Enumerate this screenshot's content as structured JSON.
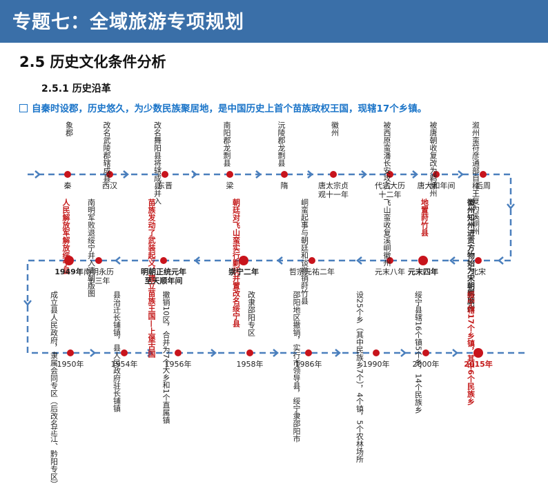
{
  "header": {
    "title": "专题七：全域旅游专项规划"
  },
  "section": {
    "title": "2.5 历史文化条件分析",
    "subtitle": "2.5.1 历史沿革"
  },
  "summary": "自秦时设郡，历史悠久，为少数民族聚居地，是中国历史上首个苗族政权王国，现辖17个乡镇。",
  "colors": {
    "banner": "#3a6fa8",
    "accent": "#1a74c8",
    "highlight": "#c41a1a",
    "line": "#4a7fbd"
  },
  "row1": [
    {
      "event": "象郡",
      "label": "秦"
    },
    {
      "event": "改名武陵郡辖成县",
      "label": "西汉"
    },
    {
      "event": "改名舞阳县将辖成县并入",
      "label": "东晋"
    },
    {
      "event": "南阳郡龙剽县",
      "label": "梁"
    },
    {
      "event": "沅陵郡龙剽县",
      "label": "隋"
    },
    {
      "event": "徽州",
      "label": "唐太宗贞观十一年"
    },
    {
      "event": "被西原蛮潘长安攻占",
      "label": "代宗大历十二年"
    },
    {
      "event": "被唐朝收复改为羁縻州",
      "label": "唐大和年间"
    },
    {
      "event": "溆州蛮符彦通部自称王复为溪峒州",
      "label": "后周"
    }
  ],
  "row2": [
    {
      "event": "徽州知州进贡方物始为宋朝羁縻州",
      "label": "北宋"
    },
    {
      "event": "地置莳竹县",
      "label": "元末四年"
    },
    {
      "event": "飞山蛮收复溪峒徽州",
      "label": "元末八年"
    },
    {
      "event": "峒蛮起事与朝廷和谈撤销莳竹县",
      "label": "哲宗元祐二年"
    },
    {
      "event": "朝廷对飞山蛮实行剿抚并置改名绥宁县",
      "label": "崇宁二年"
    },
    {
      "event": "苗族发动了武装起义，建立苗族王国—上堡古国",
      "label": "明朝正统元年至天顺年间"
    },
    {
      "event": "南明军败退绥宁并入清朝版图",
      "label": "南明永历十三年"
    },
    {
      "event": "人民解放军解放绥宁县",
      "label": "1949年"
    }
  ],
  "row3": [
    {
      "event": "成立县人民政府，隶属会同专区（后改名芷江、黔阳专区）",
      "label": "1950年"
    },
    {
      "event": "县治迁长铺镇，县人民政府驻长铺镇",
      "label": "1954年"
    },
    {
      "event": "撤销10区，合并为7个大乡和1个直属镇",
      "label": "1956年"
    },
    {
      "event": "改隶邵阳专区",
      "label": "1958年"
    },
    {
      "event": "邵阳地区撤销，实行市领导县，绥宁隶邵阳市",
      "label": "1986年"
    },
    {
      "event": "设25个乡（其中民族乡7个），4个镇，5个农林场所",
      "label": "1990年"
    },
    {
      "event": "绥宁县辖16个镇5个乡，14个民族乡",
      "label": "2000年"
    },
    {
      "event": "绥宁辖17个乡镇，其中6个民族乡",
      "label": "2015年"
    }
  ]
}
